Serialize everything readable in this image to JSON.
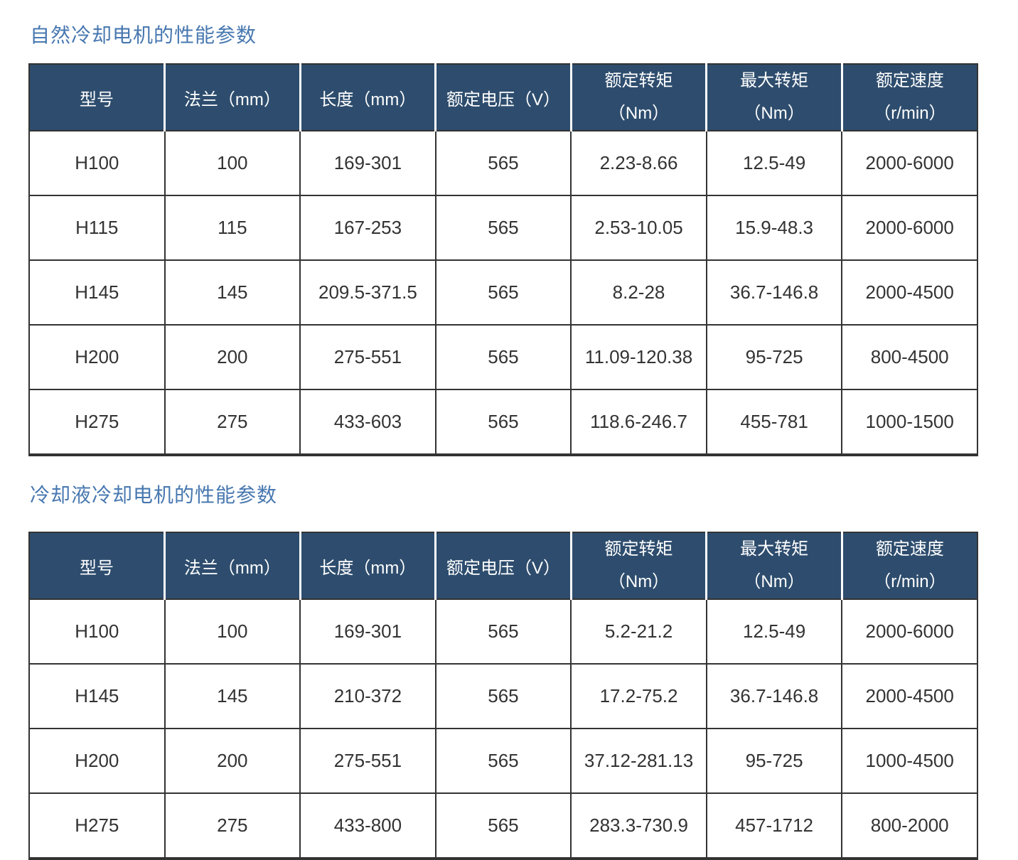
{
  "colors": {
    "title_text": "#4878B0",
    "header_bg": "#2E4D6E",
    "header_text": "#FFFFFF",
    "body_text": "#333333",
    "grid_border": "#333333"
  },
  "table1": {
    "title": "自然冷却电机的性能参数",
    "headers": {
      "model": "型号",
      "flange": "法兰（mm）",
      "length": "长度（mm）",
      "voltage": "额定电压（V）",
      "rated_torque_line1": "额定转矩",
      "rated_torque_line2": "（Nm）",
      "max_torque_line1": "最大转矩",
      "max_torque_line2": "（Nm）",
      "rated_speed_line1": "额定速度",
      "rated_speed_line2": "（r/min）"
    },
    "rows": [
      [
        "H100",
        "100",
        "169-301",
        "565",
        "2.23-8.66",
        "12.5-49",
        "2000-6000"
      ],
      [
        "H115",
        "115",
        "167-253",
        "565",
        "2.53-10.05",
        "15.9-48.3",
        "2000-6000"
      ],
      [
        "H145",
        "145",
        "209.5-371.5",
        "565",
        "8.2-28",
        "36.7-146.8",
        "2000-4500"
      ],
      [
        "H200",
        "200",
        "275-551",
        "565",
        "11.09-120.38",
        "95-725",
        "800-4500"
      ],
      [
        "H275",
        "275",
        "433-603",
        "565",
        "118.6-246.7",
        "455-781",
        "1000-1500"
      ]
    ]
  },
  "table2": {
    "title": "冷却液冷却电机的性能参数",
    "headers": {
      "model": "型号",
      "flange": "法兰（mm）",
      "length": "长度（mm）",
      "voltage": "额定电压（V）",
      "rated_torque_line1": "额定转矩",
      "rated_torque_line2": "（Nm）",
      "max_torque_line1": "最大转矩",
      "max_torque_line2": "（Nm）",
      "rated_speed_line1": "额定速度",
      "rated_speed_line2": "（r/min）"
    },
    "rows": [
      [
        "H100",
        "100",
        "169-301",
        "565",
        "5.2-21.2",
        "12.5-49",
        "2000-6000"
      ],
      [
        "H145",
        "145",
        "210-372",
        "565",
        "17.2-75.2",
        "36.7-146.8",
        "2000-4500"
      ],
      [
        "H200",
        "200",
        "275-551",
        "565",
        "37.12-281.13",
        "95-725",
        "1000-4500"
      ],
      [
        "H275",
        "275",
        "433-800",
        "565",
        "283.3-730.9",
        "457-1712",
        "800-2000"
      ]
    ]
  }
}
